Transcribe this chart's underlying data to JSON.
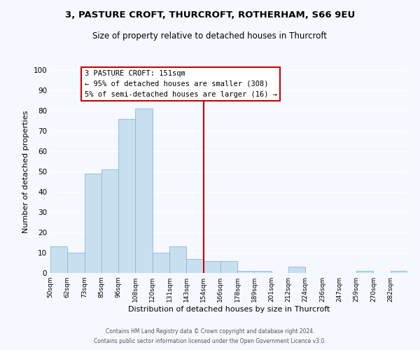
{
  "title_line1": "3, PASTURE CROFT, THURCROFT, ROTHERHAM, S66 9EU",
  "title_line2": "Size of property relative to detached houses in Thurcroft",
  "xlabel": "Distribution of detached houses by size in Thurcroft",
  "ylabel": "Number of detached properties",
  "footer_line1": "Contains HM Land Registry data © Crown copyright and database right 2024.",
  "footer_line2": "Contains public sector information licensed under the Open Government Licence v3.0.",
  "bin_labels": [
    "50sqm",
    "62sqm",
    "73sqm",
    "85sqm",
    "96sqm",
    "108sqm",
    "120sqm",
    "131sqm",
    "143sqm",
    "154sqm",
    "166sqm",
    "178sqm",
    "189sqm",
    "201sqm",
    "212sqm",
    "224sqm",
    "236sqm",
    "247sqm",
    "259sqm",
    "270sqm",
    "282sqm"
  ],
  "bar_heights": [
    13,
    10,
    49,
    51,
    76,
    81,
    10,
    13,
    7,
    6,
    6,
    1,
    1,
    0,
    3,
    0,
    0,
    0,
    1,
    0,
    1
  ],
  "bar_color": "#c8dff0",
  "bar_edge_color": "#88b8d8",
  "property_line_label": "3 PASTURE CROFT: 151sqm",
  "annotation_line2": "← 95% of detached houses are smaller (308)",
  "annotation_line3": "5% of semi-detached houses are larger (16) →",
  "annotation_box_facecolor": "#ffffff",
  "annotation_box_edgecolor": "#cc0000",
  "vline_color": "#cc0000",
  "ylim": [
    0,
    100
  ],
  "background_color": "#f5f8ff",
  "grid_color": "#ffffff",
  "vline_bin_index": 9
}
